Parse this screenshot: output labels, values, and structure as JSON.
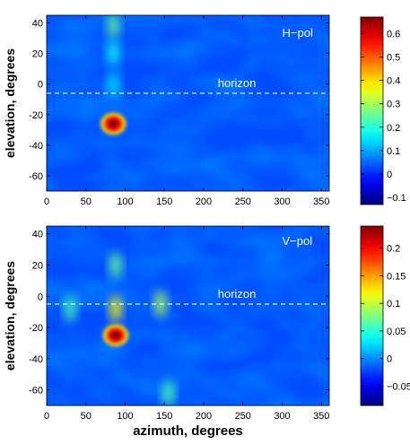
{
  "chart_data": [
    {
      "type": "heatmap",
      "title": "",
      "xlabel": "",
      "ylabel": "elevation, degrees",
      "xlim": [
        0,
        360
      ],
      "ylim": [
        -70,
        45
      ],
      "xticks": [
        0,
        50,
        100,
        150,
        200,
        250,
        300,
        350
      ],
      "yticks": [
        -60,
        -40,
        -20,
        0,
        20,
        40
      ],
      "clim": [
        -0.13,
        0.67
      ],
      "colorbar_ticks": [
        -0.1,
        0,
        0.1,
        0.2,
        0.3,
        0.4,
        0.5,
        0.6
      ],
      "colormap": "jet",
      "annotations": [
        {
          "text": "H−pol",
          "x": 300,
          "y": 31
        },
        {
          "text": "horizon",
          "x": 218,
          "y": -2
        }
      ],
      "horizon_line": {
        "elevation": -6,
        "style": "dashed",
        "color": "#ffffff"
      },
      "features": [
        {
          "azimuth": 85,
          "elevation": -26,
          "value": 0.67,
          "label": "peak"
        },
        {
          "azimuth": 85,
          "elevation": 38,
          "value": 0.25
        },
        {
          "azimuth": 85,
          "elevation": 20,
          "value": 0.18
        },
        {
          "azimuth": 85,
          "elevation": 0,
          "value": 0.15
        },
        {
          "azimuth": 85,
          "elevation": -50,
          "value": 0.05
        }
      ]
    },
    {
      "type": "heatmap",
      "title": "",
      "xlabel": "azimuth, degrees",
      "ylabel": "elevation, degrees",
      "xlim": [
        0,
        360
      ],
      "ylim": [
        -70,
        45
      ],
      "xticks": [
        0,
        50,
        100,
        150,
        200,
        250,
        300,
        350
      ],
      "yticks": [
        -60,
        -40,
        -20,
        0,
        20,
        40
      ],
      "clim": [
        -0.085,
        0.24
      ],
      "colorbar_ticks": [
        -0.05,
        0,
        0.05,
        0.1,
        0.15,
        0.2
      ],
      "colormap": "jet",
      "annotations": [
        {
          "text": "V−pol",
          "x": 300,
          "y": 33
        },
        {
          "text": "horizon",
          "x": 218,
          "y": -1
        }
      ],
      "horizon_line": {
        "elevation": -5,
        "style": "dashed",
        "color": "#ffffff"
      },
      "features": [
        {
          "azimuth": 88,
          "elevation": -25,
          "value": 0.24,
          "label": "peak"
        },
        {
          "azimuth": 88,
          "elevation": -8,
          "value": 0.12
        },
        {
          "azimuth": 88,
          "elevation": 20,
          "value": 0.07
        },
        {
          "azimuth": 145,
          "elevation": -5,
          "value": 0.09
        },
        {
          "azimuth": 30,
          "elevation": -8,
          "value": 0.06
        },
        {
          "azimuth": 155,
          "elevation": -62,
          "value": 0.06
        }
      ]
    }
  ]
}
